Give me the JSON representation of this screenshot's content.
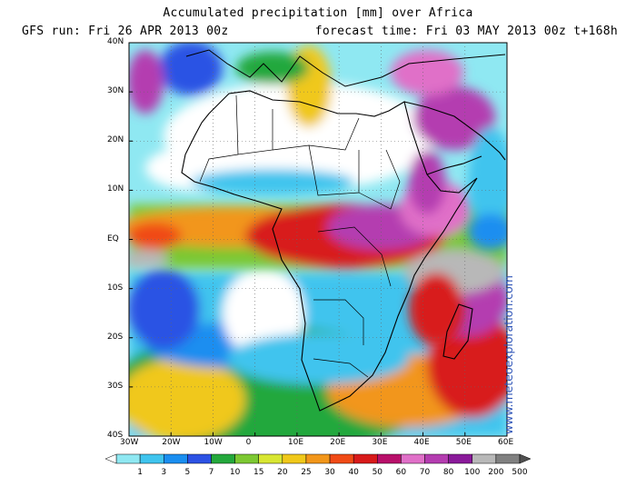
{
  "header": {
    "title": "Accumulated precipitation [mm] over Africa",
    "run": "GFS run: Fri 26 APR 2013 00z",
    "forecast": "forecast time: Fri 03 MAY 2013 00z  t+168h"
  },
  "watermark": "www.meteoexploration.com",
  "map": {
    "lon_range": [
      -30,
      60
    ],
    "lat_range": [
      -40,
      40
    ],
    "lat_labels": [
      "40N",
      "30N",
      "20N",
      "10N",
      "EQ",
      "10S",
      "20S",
      "30S",
      "40S"
    ],
    "lon_labels": [
      "30W",
      "20W",
      "10W",
      "0",
      "10E",
      "20E",
      "30E",
      "40E",
      "50E",
      "60E"
    ],
    "grid_style": "dotted"
  },
  "colorbar": {
    "labels": [
      "1",
      "3",
      "5",
      "7",
      "10",
      "15",
      "20",
      "25",
      "30",
      "40",
      "50",
      "60",
      "70",
      "80",
      "100",
      "200",
      "500"
    ],
    "colors": [
      "#8fe8f2",
      "#3fc4ee",
      "#1a8ef0",
      "#2c52e4",
      "#24a83c",
      "#7cc832",
      "#d8e632",
      "#f0c81a",
      "#f2961a",
      "#f04a16",
      "#d81a1a",
      "#b8106a",
      "#e070c8",
      "#b43cb0",
      "#8a1a9a",
      "#b8b8b8",
      "#808080"
    ]
  }
}
